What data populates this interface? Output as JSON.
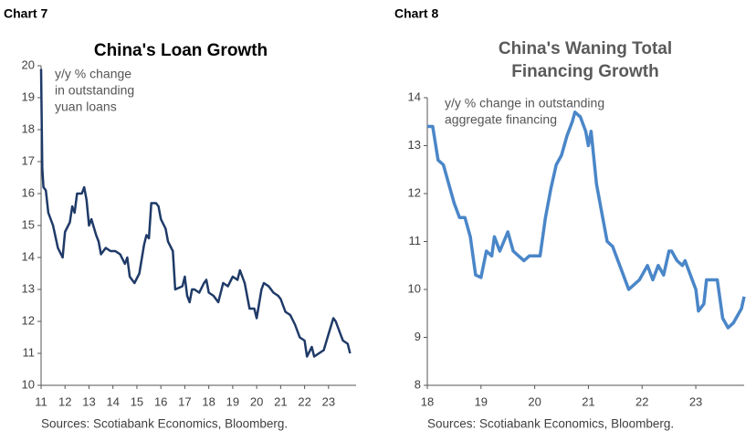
{
  "chart_data": [
    {
      "type": "line",
      "heading": "Chart 7",
      "title": [
        "China's Loan Growth"
      ],
      "annotation": [
        "y/y % change",
        "in outstanding",
        "yuan loans"
      ],
      "source": "Sources: Scotiabank Economics, Bloomberg.",
      "color": "#1f3a68",
      "xlim": [
        11,
        24.15
      ],
      "xticks": [
        11,
        12,
        13,
        14,
        15,
        16,
        17,
        18,
        19,
        20,
        21,
        22,
        23
      ],
      "ylim": [
        10,
        20
      ],
      "yticks": [
        10,
        11,
        12,
        13,
        14,
        15,
        16,
        17,
        18,
        19,
        20
      ],
      "x": [
        11.0,
        11.05,
        11.1,
        11.2,
        11.3,
        11.5,
        11.7,
        11.9,
        12.0,
        12.2,
        12.3,
        12.4,
        12.5,
        12.7,
        12.8,
        12.9,
        13.0,
        13.1,
        13.3,
        13.4,
        13.5,
        13.7,
        13.9,
        14.1,
        14.3,
        14.5,
        14.6,
        14.7,
        14.9,
        15.1,
        15.3,
        15.4,
        15.5,
        15.6,
        15.8,
        15.9,
        16.0,
        16.2,
        16.3,
        16.5,
        16.6,
        16.9,
        17.0,
        17.1,
        17.2,
        17.3,
        17.4,
        17.6,
        17.8,
        17.9,
        18.0,
        18.2,
        18.4,
        18.6,
        18.8,
        19.0,
        19.2,
        19.3,
        19.5,
        19.7,
        19.9,
        20.0,
        20.2,
        20.3,
        20.5,
        20.7,
        20.9,
        21.0,
        21.2,
        21.4,
        21.6,
        21.8,
        22.0,
        22.1,
        22.3,
        22.4,
        22.6,
        22.8,
        23.0,
        23.2,
        23.3,
        23.5,
        23.6,
        23.8,
        23.9
      ],
      "values": [
        19.9,
        16.8,
        16.2,
        16.1,
        15.4,
        15.0,
        14.3,
        14.0,
        14.8,
        15.1,
        15.6,
        15.4,
        16.0,
        16.0,
        16.2,
        15.8,
        15.0,
        15.2,
        14.7,
        14.5,
        14.1,
        14.3,
        14.2,
        14.2,
        14.1,
        13.8,
        14.0,
        13.4,
        13.2,
        13.5,
        14.4,
        14.7,
        14.6,
        15.7,
        15.7,
        15.6,
        15.2,
        14.9,
        14.5,
        14.2,
        13.0,
        13.1,
        13.4,
        12.8,
        12.6,
        13.0,
        13.0,
        12.9,
        13.2,
        13.3,
        12.9,
        12.8,
        12.6,
        13.2,
        13.1,
        13.4,
        13.3,
        13.6,
        13.2,
        12.4,
        12.4,
        12.1,
        13.0,
        13.2,
        13.1,
        12.9,
        12.8,
        12.7,
        12.3,
        12.2,
        11.9,
        11.5,
        11.4,
        10.9,
        11.2,
        10.9,
        11.0,
        11.1,
        11.6,
        12.1,
        12.0,
        11.6,
        11.4,
        11.3,
        11.0
      ]
    },
    {
      "type": "line",
      "heading": "Chart 8",
      "title": [
        "China's Waning Total",
        "Financing Growth"
      ],
      "annotation": [
        "y/y % change in outstanding",
        "aggregate financing"
      ],
      "source": "Sources: Scotiabank Economics, Bloomberg.",
      "color": "#4a86c8",
      "xlim": [
        18,
        23.9
      ],
      "xticks": [
        18,
        19,
        20,
        21,
        22,
        23
      ],
      "ylim": [
        8,
        14
      ],
      "yticks": [
        8,
        9,
        10,
        11,
        12,
        13,
        14
      ],
      "x": [
        18.0,
        18.1,
        18.2,
        18.3,
        18.4,
        18.5,
        18.6,
        18.7,
        18.8,
        18.9,
        19.0,
        19.1,
        19.2,
        19.25,
        19.35,
        19.5,
        19.6,
        19.7,
        19.8,
        19.9,
        20.0,
        20.1,
        20.2,
        20.3,
        20.4,
        20.5,
        20.6,
        20.7,
        20.75,
        20.85,
        20.95,
        21.0,
        21.05,
        21.15,
        21.25,
        21.35,
        21.45,
        21.55,
        21.65,
        21.75,
        21.85,
        21.95,
        22.0,
        22.1,
        22.2,
        22.3,
        22.4,
        22.5,
        22.55,
        22.65,
        22.75,
        22.8,
        22.9,
        23.0,
        23.05,
        23.15,
        23.2,
        23.35,
        23.4,
        23.5,
        23.6,
        23.7,
        23.8,
        23.85,
        23.9
      ],
      "values": [
        13.4,
        13.4,
        12.7,
        12.6,
        12.2,
        11.8,
        11.5,
        11.5,
        11.1,
        10.3,
        10.25,
        10.8,
        10.7,
        11.1,
        10.8,
        11.2,
        10.8,
        10.7,
        10.6,
        10.7,
        10.7,
        10.7,
        11.5,
        12.1,
        12.6,
        12.8,
        13.2,
        13.5,
        13.7,
        13.6,
        13.3,
        13.0,
        13.3,
        12.2,
        11.6,
        11.0,
        10.9,
        10.6,
        10.3,
        10.0,
        10.1,
        10.2,
        10.3,
        10.5,
        10.2,
        10.5,
        10.3,
        10.8,
        10.8,
        10.6,
        10.5,
        10.6,
        10.3,
        10.0,
        9.55,
        9.7,
        10.2,
        10.2,
        10.2,
        9.4,
        9.2,
        9.3,
        9.5,
        9.6,
        9.85
      ]
    }
  ]
}
